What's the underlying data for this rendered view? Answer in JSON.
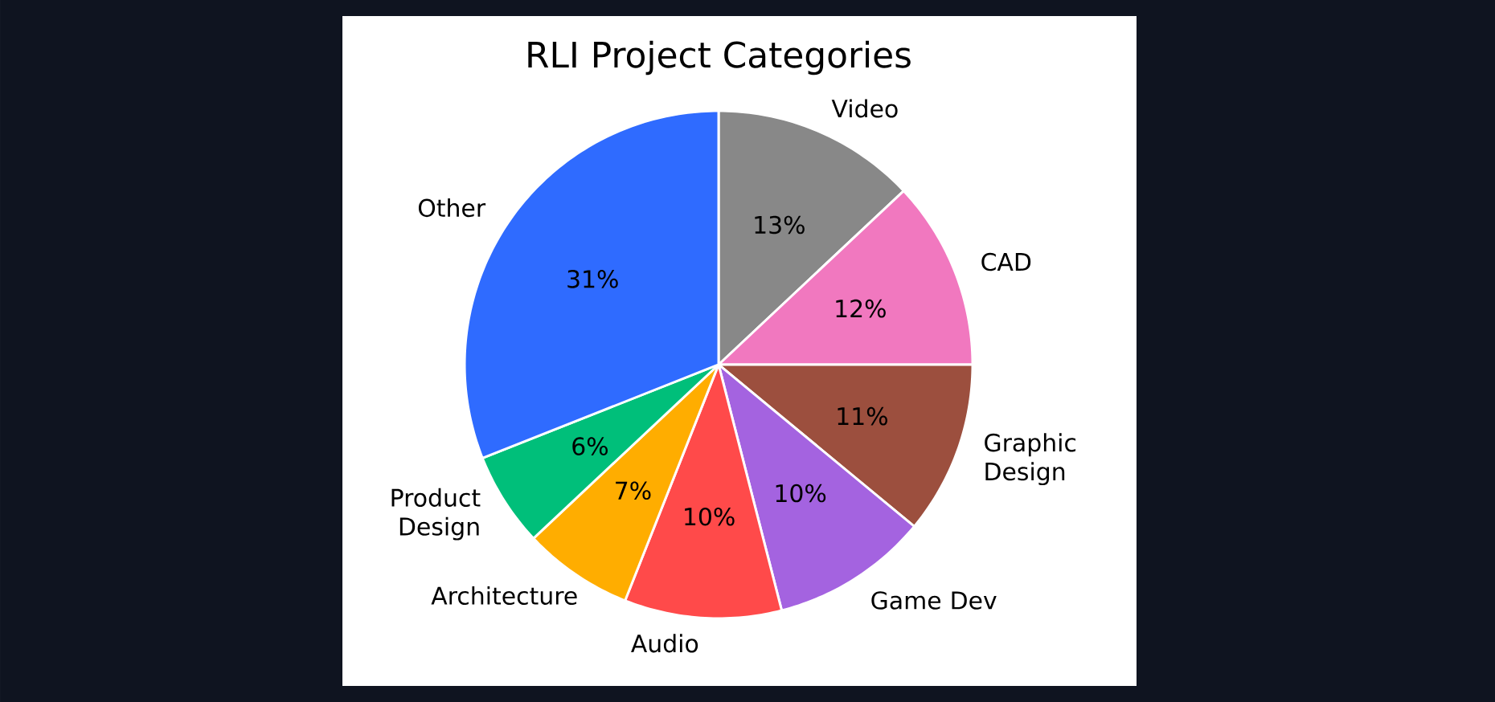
{
  "chart_data": {
    "type": "pie",
    "title": "RLI Project Categories",
    "categories": [
      "Video",
      "CAD",
      "Graphic Design",
      "Game Dev",
      "Audio",
      "Architecture",
      "Product Design",
      "Other"
    ],
    "values": [
      13,
      12,
      11,
      10,
      10,
      7,
      6,
      31
    ],
    "colors": [
      "#888888",
      "#f178bf",
      "#9c4f3e",
      "#a463e0",
      "#ff4a4a",
      "#ffad00",
      "#00bf7a",
      "#2f6bff"
    ],
    "value_labels": [
      "13%",
      "12%",
      "11%",
      "10%",
      "10%",
      "7%",
      "6%",
      "31%"
    ]
  }
}
